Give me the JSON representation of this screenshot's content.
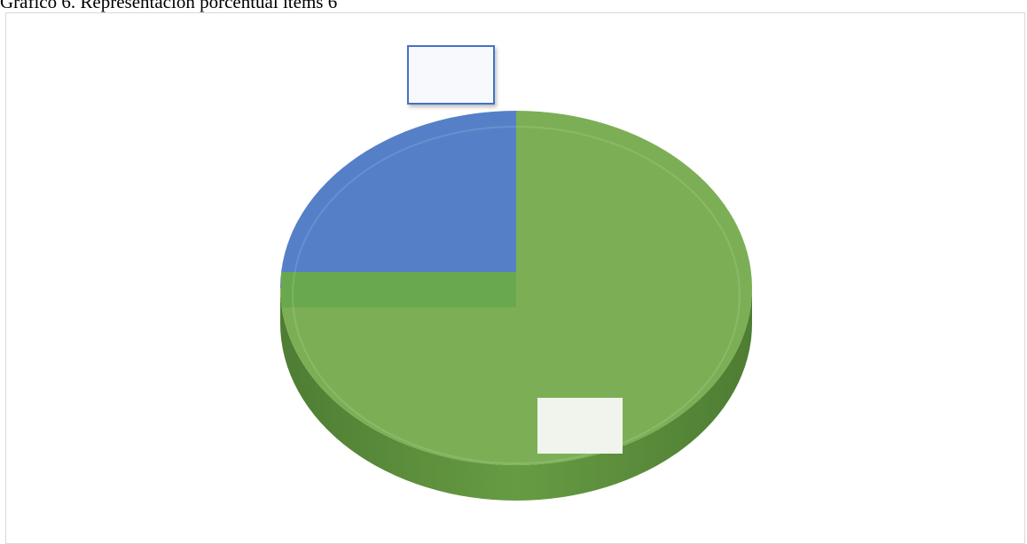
{
  "caption": "Gráfico 6. Representación porcentual ítems 6",
  "chart_data": {
    "type": "pie",
    "title": "",
    "three_d": true,
    "slices": [
      {
        "label": "",
        "value": 75,
        "color": "#7caf55"
      },
      {
        "label": "",
        "value": 25,
        "color": "#5580c8"
      }
    ],
    "legend": false
  }
}
